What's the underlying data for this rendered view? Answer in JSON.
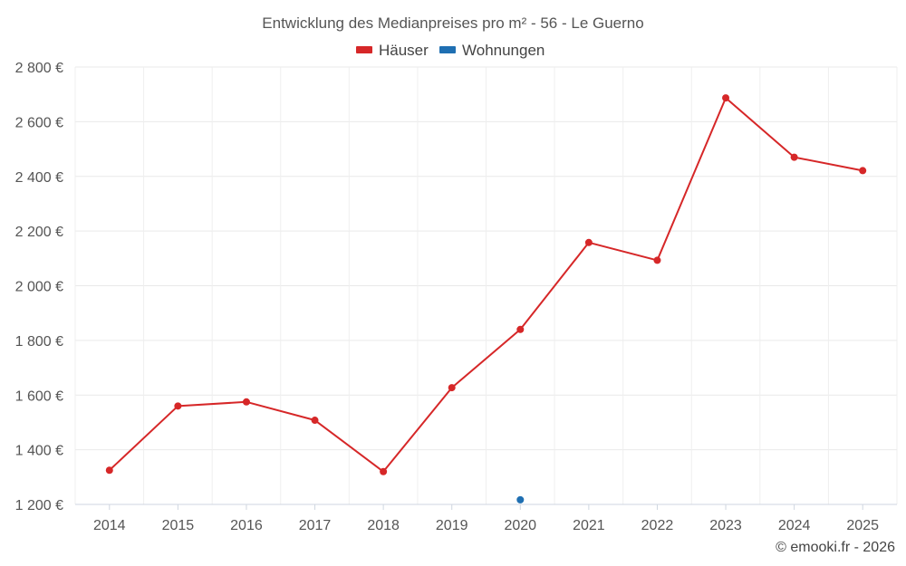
{
  "chart_data": {
    "type": "line",
    "title": "Entwicklung des Medianpreises pro m² - 56 - Le Guerno",
    "categories": [
      "2014",
      "2015",
      "2016",
      "2017",
      "2018",
      "2019",
      "2020",
      "2021",
      "2022",
      "2023",
      "2024",
      "2025"
    ],
    "series": [
      {
        "name": "Häuser",
        "color": "#d62728",
        "values": [
          1325,
          1560,
          1575,
          1508,
          1320,
          1627,
          1840,
          2158,
          2093,
          2687,
          2470,
          2421
        ]
      },
      {
        "name": "Wohnungen",
        "color": "#1f6fb2",
        "values": [
          null,
          null,
          null,
          null,
          null,
          null,
          1217,
          null,
          null,
          null,
          null,
          null
        ]
      }
    ],
    "ylim": [
      1200,
      2800
    ],
    "yticks": [
      1200,
      1400,
      1600,
      1800,
      2000,
      2200,
      2400,
      2600,
      2800
    ],
    "ytick_labels": [
      "1 200 €",
      "1 400 €",
      "1 600 €",
      "1 800 €",
      "2 000 €",
      "2 200 €",
      "2 400 €",
      "2 600 €",
      "2 800 €"
    ],
    "xlabel": "",
    "ylabel": "",
    "grid": true,
    "legend_position": "top-center"
  },
  "credit": "© emooki.fr - 2026"
}
